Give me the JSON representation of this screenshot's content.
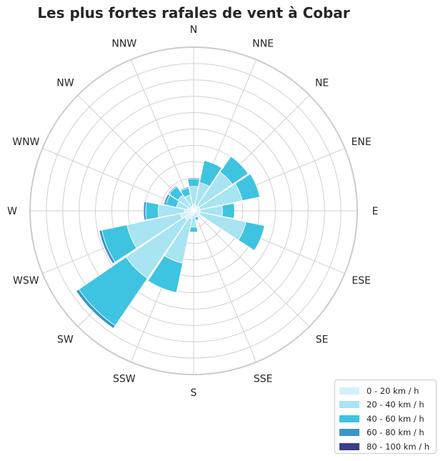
{
  "chart_data": {
    "type": "windrose",
    "title": "Les plus fortes rafales de vent à Cobar",
    "directions": [
      "N",
      "NNE",
      "NE",
      "ENE",
      "E",
      "ESE",
      "SE",
      "SSE",
      "S",
      "SSW",
      "SW",
      "WSW",
      "W",
      "WNW",
      "NW",
      "NNW"
    ],
    "radial_max": 30,
    "radial_ticks": [
      3,
      6,
      9,
      12,
      15,
      18,
      21,
      24,
      27,
      30
    ],
    "grid": true,
    "legend_position": "bottom-right",
    "series": [
      {
        "name": "0 - 20 km / h",
        "color": "#d4f0fa",
        "values": [
          1.2,
          1.0,
          1.2,
          1.2,
          1.2,
          1.2,
          0.5,
          0.5,
          0.8,
          1.5,
          2.0,
          2.5,
          1.7,
          1.2,
          0.8,
          0.8
        ]
      },
      {
        "name": "20 - 40 km / h",
        "color": "#a8e4f2",
        "values": [
          3.3,
          4.3,
          7.4,
          7.9,
          4.1,
          8.6,
          0.5,
          0.7,
          2.2,
          8.3,
          13.0,
          10.0,
          4.8,
          2.0,
          2.7,
          2.2
        ]
      },
      {
        "name": "40 - 60 km / h",
        "color": "#3ec4e0",
        "values": [
          1.4,
          4.1,
          3.5,
          3.3,
          2.2,
          3.5,
          0,
          0.6,
          0.9,
          5.5,
          10.5,
          4.7,
          2.3,
          2.0,
          1.9,
          1.3
        ]
      },
      {
        "name": "60 - 80 km / h",
        "color": "#3b95c9",
        "values": [
          0.2,
          0,
          0,
          0,
          0,
          0,
          0,
          0,
          0,
          0,
          0.6,
          0.5,
          0.4,
          0.4,
          0.2,
          0.2
        ]
      },
      {
        "name": "80 - 100 km / h",
        "color": "#3b3f8a",
        "values": [
          0,
          0,
          0,
          0,
          0,
          0,
          0,
          0,
          0,
          0,
          0,
          0,
          0,
          0,
          0,
          0
        ]
      }
    ]
  }
}
